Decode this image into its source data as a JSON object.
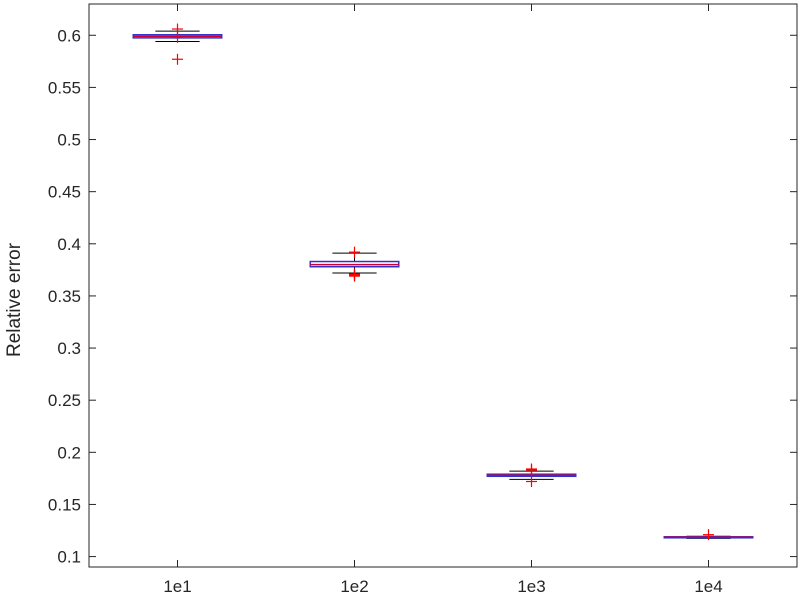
{
  "chart_data": {
    "type": "box",
    "title": "",
    "xlabel": "",
    "ylabel": "Relative error",
    "ylim": [
      0.09,
      0.63
    ],
    "yticks": [
      0.1,
      0.15,
      0.2,
      0.25,
      0.3,
      0.35,
      0.4,
      0.45,
      0.5,
      0.55,
      0.6
    ],
    "categories": [
      "1e1",
      "1e2",
      "1e3",
      "1e4"
    ],
    "grid": false,
    "colors": {
      "box": "#3333cc",
      "median": "#cc0033",
      "outlier": "#ff0000",
      "whisker": "#000000",
      "axis": "#262626"
    },
    "boxes": [
      {
        "category": "1e1",
        "whisker_low": 0.594,
        "q1": 0.5975,
        "median": 0.599,
        "q3": 0.6005,
        "whisker_high": 0.604,
        "outliers": [
          0.577,
          0.598,
          0.606
        ]
      },
      {
        "category": "1e2",
        "whisker_low": 0.372,
        "q1": 0.378,
        "median": 0.38,
        "q3": 0.383,
        "whisker_high": 0.391,
        "outliers": [
          0.369,
          0.37,
          0.371,
          0.392
        ]
      },
      {
        "category": "1e3",
        "whisker_low": 0.174,
        "q1": 0.177,
        "median": 0.178,
        "q3": 0.179,
        "whisker_high": 0.182,
        "outliers": [
          0.172,
          0.183,
          0.184
        ]
      },
      {
        "category": "1e4",
        "whisker_low": 0.1175,
        "q1": 0.118,
        "median": 0.1185,
        "q3": 0.119,
        "whisker_high": 0.1195,
        "outliers": [
          0.121
        ]
      }
    ]
  }
}
